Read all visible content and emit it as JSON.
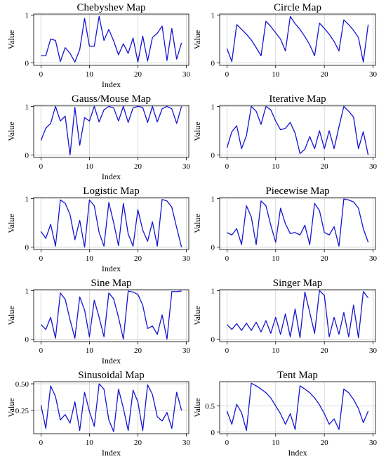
{
  "colors": {
    "line": "#1515d0",
    "grid": "#cccccc",
    "axis": "#000000"
  },
  "chart_data": [
    {
      "type": "line",
      "title": "Chebyshev Map",
      "xlabel": "Index",
      "ylabel": "Value",
      "xlim": [
        -1.5,
        30.5
      ],
      "ylim": [
        -0.05,
        1.02
      ],
      "xticks": [
        0,
        10,
        20,
        30
      ],
      "yticks": [
        0,
        1
      ],
      "ytick_labels": [
        "0",
        "1"
      ],
      "grid": true,
      "x": [
        0,
        1,
        2,
        3,
        4,
        5,
        6,
        7,
        8,
        9,
        10,
        11,
        12,
        13,
        14,
        15,
        16,
        17,
        18,
        19,
        20,
        21,
        22,
        23,
        24,
        25,
        26,
        27,
        28,
        29
      ],
      "values": [
        0.15,
        0.15,
        0.5,
        0.47,
        0.03,
        0.32,
        0.2,
        0.02,
        0.28,
        0.93,
        0.35,
        0.35,
        0.97,
        0.47,
        0.7,
        0.46,
        0.17,
        0.4,
        0.2,
        0.52,
        0.02,
        0.56,
        0.04,
        0.53,
        0.62,
        0.77,
        0.05,
        0.72,
        0.08,
        0.42
      ]
    },
    {
      "type": "line",
      "title": "Circle Map",
      "xlabel": "",
      "ylabel": "Value",
      "xlim": [
        -1.5,
        30.5
      ],
      "ylim": [
        -0.05,
        1.02
      ],
      "xticks": [
        0,
        10,
        20,
        30
      ],
      "yticks": [
        0,
        1
      ],
      "ytick_labels": [
        "0",
        "1"
      ],
      "grid": true,
      "x": [
        0,
        1,
        2,
        3,
        4,
        5,
        6,
        7,
        8,
        9,
        10,
        11,
        12,
        13,
        14,
        15,
        16,
        17,
        18,
        19,
        20,
        21,
        22,
        23,
        24,
        25,
        26,
        27,
        28,
        29
      ],
      "values": [
        0.3,
        0.03,
        0.8,
        0.7,
        0.6,
        0.48,
        0.32,
        0.15,
        0.87,
        0.76,
        0.63,
        0.5,
        0.25,
        0.97,
        0.82,
        0.7,
        0.55,
        0.38,
        0.15,
        0.83,
        0.72,
        0.6,
        0.45,
        0.25,
        0.9,
        0.8,
        0.68,
        0.53,
        0.02,
        0.8
      ]
    },
    {
      "type": "line",
      "title": "Gauss/Mouse Map",
      "xlabel": "Index",
      "ylabel": "Value",
      "xlim": [
        -1.5,
        30.5
      ],
      "ylim": [
        -0.05,
        1.02
      ],
      "xticks": [
        0,
        10,
        20,
        30
      ],
      "yticks": [
        0,
        1
      ],
      "ytick_labels": [
        "0",
        "1"
      ],
      "grid": true,
      "x": [
        0,
        1,
        2,
        3,
        4,
        5,
        6,
        7,
        8,
        9,
        10,
        11,
        12,
        13,
        14,
        15,
        16,
        17,
        18,
        19,
        20,
        21,
        22,
        23,
        24,
        25,
        26,
        27,
        28,
        29
      ],
      "values": [
        0.3,
        0.55,
        0.65,
        1.0,
        0.7,
        0.8,
        0.0,
        0.98,
        0.2,
        0.77,
        0.7,
        1.0,
        0.68,
        0.93,
        1.0,
        0.97,
        0.7,
        1.0,
        0.67,
        0.97,
        1.0,
        0.98,
        0.67,
        1.0,
        0.68,
        0.95,
        1.0,
        0.95,
        0.65,
        1.0
      ]
    },
    {
      "type": "line",
      "title": "Iterative Map",
      "xlabel": "",
      "ylabel": "Value",
      "xlim": [
        -1.5,
        30.5
      ],
      "ylim": [
        -0.05,
        1.02
      ],
      "xticks": [
        0,
        10,
        20,
        30
      ],
      "yticks": [
        0,
        1
      ],
      "ytick_labels": [
        "0",
        "1"
      ],
      "grid": true,
      "x": [
        0,
        1,
        2,
        3,
        4,
        5,
        6,
        7,
        8,
        9,
        10,
        11,
        12,
        13,
        14,
        15,
        16,
        17,
        18,
        19,
        20,
        21,
        22,
        23,
        24,
        25,
        26,
        27,
        28,
        29
      ],
      "values": [
        0.15,
        0.48,
        0.6,
        0.13,
        0.4,
        1.0,
        0.9,
        0.63,
        1.0,
        0.93,
        0.7,
        0.52,
        0.55,
        0.67,
        0.45,
        0.03,
        0.12,
        0.38,
        0.13,
        0.5,
        0.13,
        0.5,
        0.13,
        0.58,
        1.0,
        0.9,
        0.78,
        0.13,
        0.48,
        0.0
      ]
    },
    {
      "type": "line",
      "title": "Logistic Map",
      "xlabel": "Index",
      "ylabel": "Value",
      "xlim": [
        -1.5,
        30.5
      ],
      "ylim": [
        -0.05,
        1.02
      ],
      "xticks": [
        0,
        10,
        20,
        30
      ],
      "yticks": [
        0,
        1
      ],
      "ytick_labels": [
        "0",
        "1"
      ],
      "grid": true,
      "x": [
        0,
        1,
        2,
        3,
        4,
        5,
        6,
        7,
        8,
        9,
        10,
        11,
        12,
        13,
        14,
        15,
        16,
        17,
        18,
        19,
        20,
        21,
        22,
        23,
        24,
        25,
        26,
        27,
        28,
        29
      ],
      "values": [
        0.32,
        0.18,
        0.47,
        0.02,
        0.97,
        0.9,
        0.67,
        0.15,
        0.55,
        0.0,
        0.97,
        0.85,
        0.3,
        0.02,
        0.92,
        0.5,
        0.03,
        0.9,
        0.27,
        0.02,
        0.77,
        0.35,
        0.12,
        0.52,
        0.02,
        0.98,
        0.95,
        0.82,
        0.4,
        0.0
      ]
    },
    {
      "type": "line",
      "title": "Piecewise Map",
      "xlabel": "",
      "ylabel": "Value",
      "xlim": [
        -1.5,
        30.5
      ],
      "ylim": [
        -0.05,
        1.02
      ],
      "xticks": [
        0,
        10,
        20,
        30
      ],
      "yticks": [
        0,
        1
      ],
      "ytick_labels": [
        "0",
        "1"
      ],
      "grid": true,
      "x": [
        0,
        1,
        2,
        3,
        4,
        5,
        6,
        7,
        8,
        9,
        10,
        11,
        12,
        13,
        14,
        15,
        16,
        17,
        18,
        19,
        20,
        21,
        22,
        23,
        24,
        25,
        26,
        27,
        28,
        29
      ],
      "values": [
        0.3,
        0.25,
        0.38,
        0.05,
        0.85,
        0.62,
        0.05,
        0.95,
        0.85,
        0.45,
        0.1,
        0.8,
        0.48,
        0.28,
        0.3,
        0.25,
        0.45,
        0.05,
        0.9,
        0.75,
        0.3,
        0.25,
        0.42,
        0.02,
        0.99,
        0.97,
        0.93,
        0.8,
        0.38,
        0.1
      ]
    },
    {
      "type": "line",
      "title": "Sine Map",
      "xlabel": "Index",
      "ylabel": "Value",
      "xlim": [
        -1.5,
        30.5
      ],
      "ylim": [
        -0.05,
        1.02
      ],
      "xticks": [
        0,
        10,
        20,
        30
      ],
      "yticks": [
        0,
        1
      ],
      "ytick_labels": [
        "0",
        "1"
      ],
      "grid": true,
      "x": [
        0,
        1,
        2,
        3,
        4,
        5,
        6,
        7,
        8,
        9,
        10,
        11,
        12,
        13,
        14,
        15,
        16,
        17,
        18,
        19,
        20,
        21,
        22,
        23,
        24,
        25,
        26,
        27,
        28,
        29
      ],
      "values": [
        0.3,
        0.2,
        0.45,
        0.02,
        0.95,
        0.82,
        0.4,
        0.02,
        0.87,
        0.6,
        0.05,
        0.8,
        0.45,
        0.05,
        0.95,
        0.83,
        0.45,
        0.0,
        0.99,
        0.97,
        0.92,
        0.7,
        0.22,
        0.27,
        0.1,
        0.5,
        0.0,
        0.98,
        0.98,
        0.99
      ]
    },
    {
      "type": "line",
      "title": "Singer Map",
      "xlabel": "",
      "ylabel": "Value",
      "xlim": [
        -1.5,
        30.5
      ],
      "ylim": [
        -0.05,
        1.02
      ],
      "xticks": [
        0,
        10,
        20,
        30
      ],
      "yticks": [
        0,
        1
      ],
      "ytick_labels": [
        "0",
        "1"
      ],
      "grid": true,
      "x": [
        0,
        1,
        2,
        3,
        4,
        5,
        6,
        7,
        8,
        9,
        10,
        11,
        12,
        13,
        14,
        15,
        16,
        17,
        18,
        19,
        20,
        21,
        22,
        23,
        24,
        25,
        26,
        27,
        28,
        29
      ],
      "values": [
        0.3,
        0.2,
        0.32,
        0.18,
        0.33,
        0.18,
        0.35,
        0.15,
        0.38,
        0.12,
        0.45,
        0.1,
        0.52,
        0.05,
        0.62,
        0.03,
        0.97,
        0.55,
        0.12,
        1.0,
        0.9,
        0.05,
        0.45,
        0.1,
        0.55,
        0.05,
        0.7,
        0.03,
        0.98,
        0.85
      ]
    },
    {
      "type": "line",
      "title": "Sinusoidal Map",
      "xlabel": "Index",
      "ylabel": "Value",
      "xlim": [
        -1.5,
        30.5
      ],
      "ylim": [
        0.03,
        0.52
      ],
      "xticks": [
        0,
        10,
        20,
        30
      ],
      "yticks": [
        0.25,
        0.5
      ],
      "ytick_labels": [
        "0.25",
        "0.50"
      ],
      "grid": true,
      "x": [
        0,
        1,
        2,
        3,
        4,
        5,
        6,
        7,
        8,
        9,
        10,
        11,
        12,
        13,
        14,
        15,
        16,
        17,
        18,
        19,
        20,
        21,
        22,
        23,
        24,
        25,
        26,
        27,
        28,
        29
      ],
      "values": [
        0.3,
        0.08,
        0.48,
        0.38,
        0.16,
        0.21,
        0.13,
        0.33,
        0.06,
        0.42,
        0.24,
        0.1,
        0.5,
        0.45,
        0.16,
        0.05,
        0.45,
        0.27,
        0.06,
        0.44,
        0.33,
        0.06,
        0.49,
        0.4,
        0.19,
        0.15,
        0.23,
        0.08,
        0.42,
        0.25
      ]
    },
    {
      "type": "line",
      "title": "Tent Map",
      "xlabel": "Index",
      "ylabel": "Value",
      "xlim": [
        -1.5,
        30.5
      ],
      "ylim": [
        -0.03,
        0.96
      ],
      "xticks": [
        0,
        10,
        20,
        30
      ],
      "yticks": [
        0,
        0.5
      ],
      "ytick_labels": [
        "0",
        "0.5"
      ],
      "grid": true,
      "x": [
        0,
        1,
        2,
        3,
        4,
        5,
        6,
        7,
        8,
        9,
        10,
        11,
        12,
        13,
        14,
        15,
        16,
        17,
        18,
        19,
        20,
        21,
        22,
        23,
        24,
        25,
        26,
        27,
        28,
        29
      ],
      "values": [
        0.4,
        0.15,
        0.53,
        0.37,
        0.03,
        0.93,
        0.88,
        0.82,
        0.75,
        0.65,
        0.5,
        0.35,
        0.15,
        0.35,
        0.05,
        0.88,
        0.82,
        0.75,
        0.65,
        0.52,
        0.35,
        0.15,
        0.25,
        0.05,
        0.82,
        0.75,
        0.62,
        0.45,
        0.18,
        0.4
      ]
    }
  ]
}
